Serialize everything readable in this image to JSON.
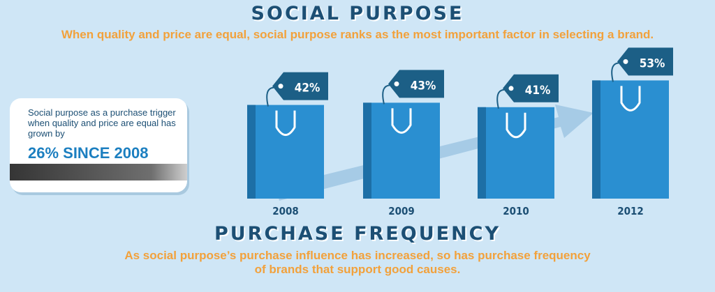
{
  "title": "SOCIAL PURPOSE",
  "subtitle": "When quality and price are equal, social purpose ranks as the most important factor in selecting a brand.",
  "card": {
    "text": "Social purpose as a purchase trigger when quality and price are equal has grown by",
    "highlight": "26% SINCE 2008"
  },
  "section2": {
    "title": "PURCHASE FREQUENCY",
    "subtitle_line1": "As social purpose’s purchase influence has increased, so has purchase frequency",
    "subtitle_line2": "of brands that support good causes."
  },
  "chart_data": {
    "type": "bar",
    "categories": [
      "2008",
      "2009",
      "2010",
      "2012"
    ],
    "values": [
      42,
      43,
      41,
      53
    ],
    "value_labels": [
      "42%",
      "43%",
      "41%",
      "53%"
    ],
    "unit": "%",
    "colors": {
      "bag": "#2a8fd1",
      "bag_dark": "#1d6fa6",
      "tag": "#1c5f86",
      "arrow": "#a6cbe6",
      "title": "#1c4f74",
      "accent": "#f2a13b"
    }
  }
}
